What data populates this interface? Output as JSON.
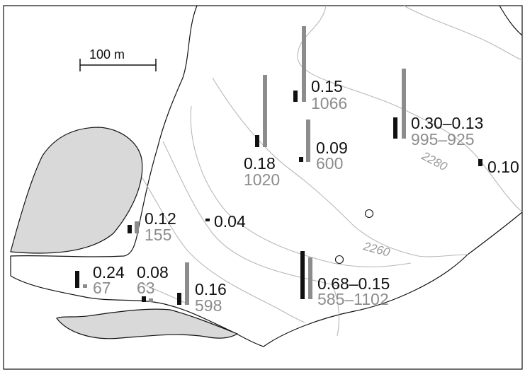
{
  "scale_bar": {
    "label": "100 m"
  },
  "contours": [
    {
      "label": "2280"
    },
    {
      "label": "2260"
    }
  ],
  "colors": {
    "dark_bar": "#111111",
    "grey_bar": "#8c8c8c",
    "rock_fill": "#d9d9d9",
    "contour": "#b8b8b8",
    "outline": "#111111"
  },
  "sites": [
    {
      "dark": "0.15",
      "grey": "1066"
    },
    {
      "dark": "0.30–0.13",
      "grey": "995–925"
    },
    {
      "dark": "0.09",
      "grey": "600"
    },
    {
      "dark": "0.18",
      "grey": "1020"
    },
    {
      "dark": "0.10",
      "grey": ""
    },
    {
      "dark": "0.12",
      "grey": "155"
    },
    {
      "dark": "0.04",
      "grey": ""
    },
    {
      "dark": "0.24",
      "grey": "67"
    },
    {
      "dark": "0.08",
      "grey": "63"
    },
    {
      "dark": "0.16",
      "grey": "598"
    },
    {
      "dark": "0.68–0.15",
      "grey": "585–1102"
    }
  ]
}
